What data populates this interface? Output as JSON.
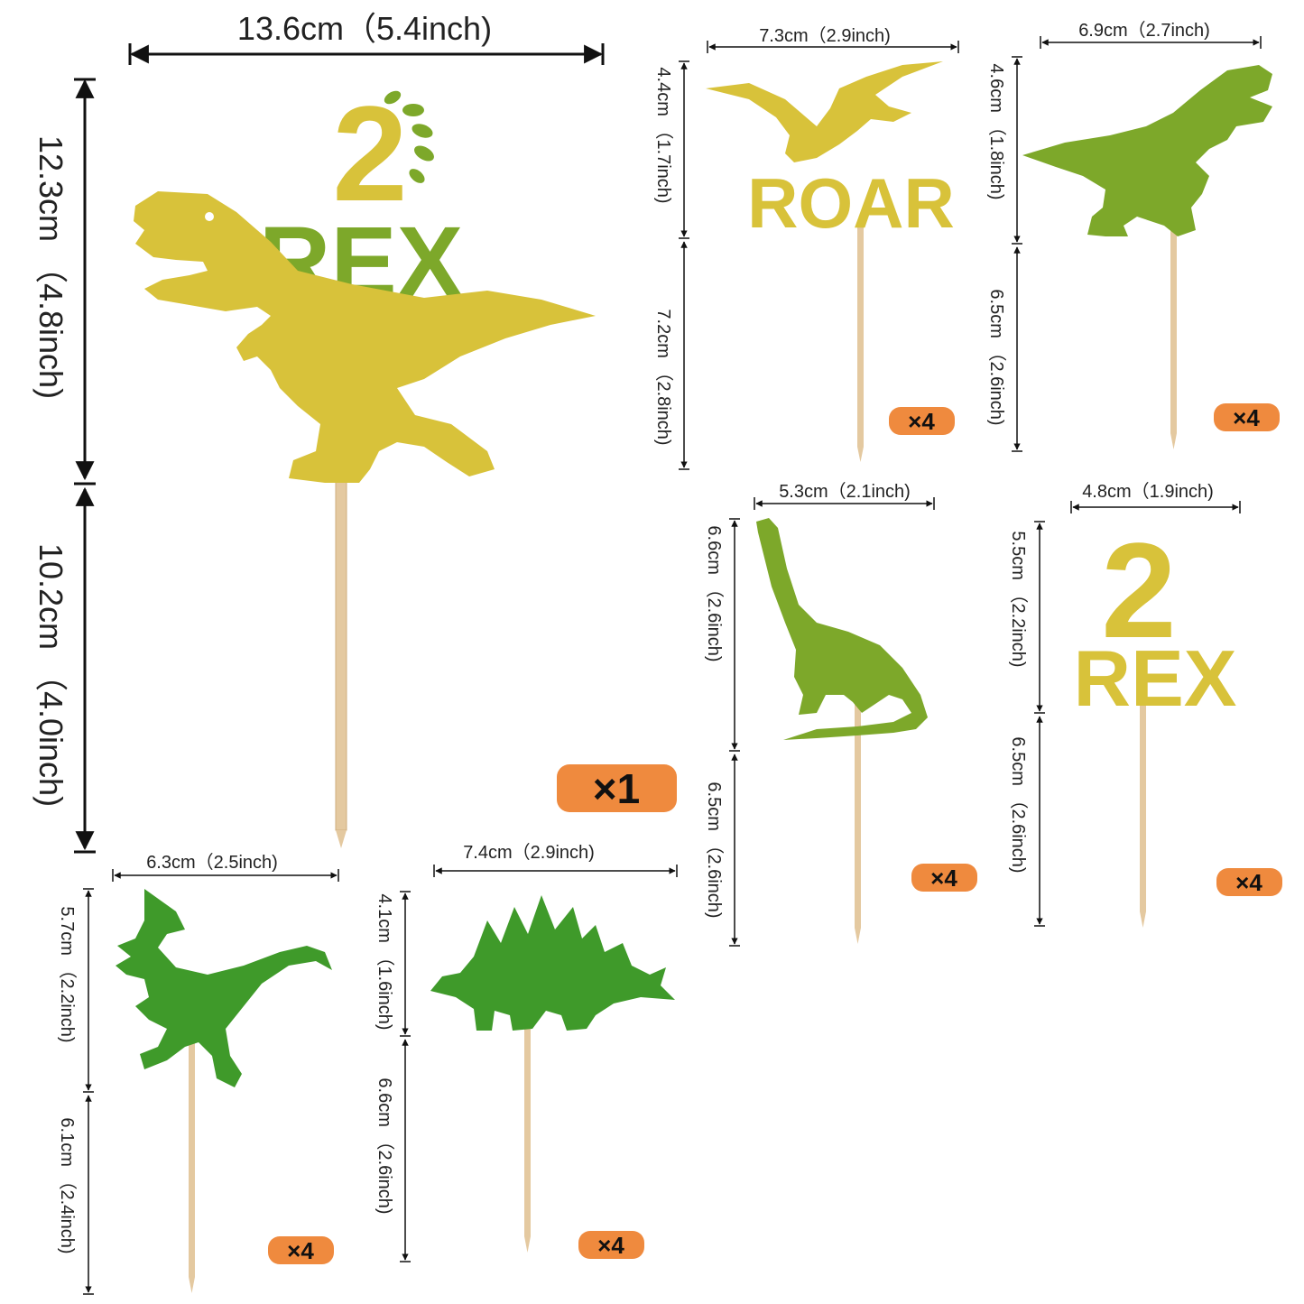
{
  "colors": {
    "gold": "#d8c23a",
    "gold_light": "#e9d75a",
    "olive_green": "#7da82a",
    "green": "#3f9a2a",
    "stick": "#e4c9a0",
    "badge": "#ef8a3e"
  },
  "main_topper": {
    "width": "13.6cm（5.4inch)",
    "top_height": "12.3cm （4.8inch)",
    "stick_height": "10.2cm （4.0inch)",
    "number": "2",
    "word": "REX",
    "quantity": "×1"
  },
  "pterodactyl_topper": {
    "word": "ROAR",
    "width": "7.3cm（2.9inch)",
    "top_height": "4.4cm （1.7inch)",
    "stick_height": "7.2cm （2.8inch)",
    "quantity": "×4"
  },
  "trex_topper": {
    "width": "6.9cm（2.7inch)",
    "top_height": "4.6cm （1.8inch)",
    "stick_height": "6.5cm （2.6inch)",
    "quantity": "×4"
  },
  "brachiosaurus_topper": {
    "width": "5.3cm（2.1inch)",
    "top_height": "6.6cm （2.6inch)",
    "stick_height": "6.5cm （2.6inch)",
    "quantity": "×4"
  },
  "two_rex_topper": {
    "number": "2",
    "word": "REX",
    "width": "4.8cm（1.9inch)",
    "top_height": "5.5cm （2.2inch)",
    "stick_height": "6.5cm （2.6inch)",
    "quantity": "×4"
  },
  "raptor_topper": {
    "width": "6.3cm（2.5inch)",
    "top_height": "5.7cm （2.2inch)",
    "stick_height": "6.1cm （2.4inch)",
    "quantity": "×4"
  },
  "stegosaurus_topper": {
    "width": "7.4cm（2.9inch)",
    "top_height": "4.1cm （1.6inch)",
    "stick_height": "6.6cm （2.6inch)",
    "quantity": "×4"
  }
}
